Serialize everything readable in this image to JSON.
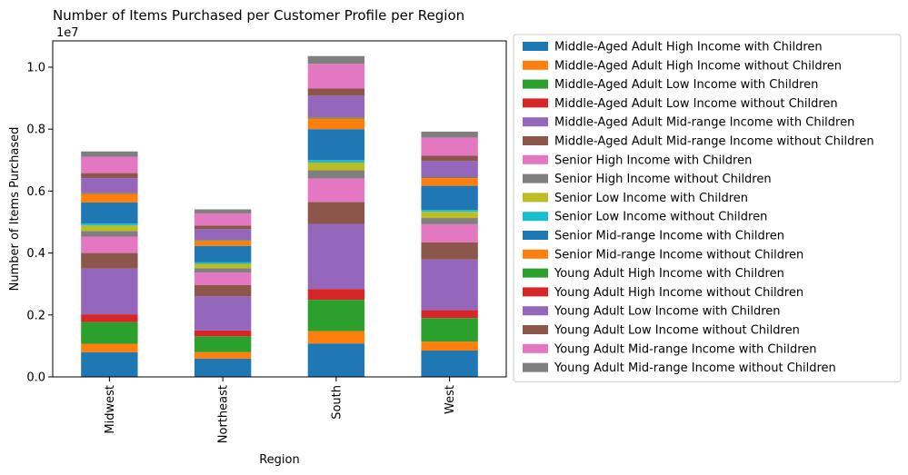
{
  "chart_data": {
    "type": "bar",
    "stacked": true,
    "title": "Number of Items Purchased per Customer Profile per Region",
    "xlabel": "Region",
    "ylabel": "Number of Items Purchased",
    "y_offset_label": "1e7",
    "ylim": [
      0,
      10850000
    ],
    "yticks": [
      0,
      2000000,
      4000000,
      6000000,
      8000000,
      10000000
    ],
    "ytick_labels": [
      "0.0",
      "0.2",
      "0.4",
      "0.6",
      "0.8",
      "1.0"
    ],
    "categories": [
      "Midwest",
      "Northeast",
      "South",
      "West"
    ],
    "legend_position": "outside-right",
    "series": [
      {
        "name": "Middle-Aged Adult High Income with Children",
        "color": "#1f77b4",
        "values": [
          800000,
          590000,
          1080000,
          850000
        ]
      },
      {
        "name": "Middle-Aged Adult High Income without Children",
        "color": "#ff7f0e",
        "values": [
          270000,
          210000,
          400000,
          290000
        ]
      },
      {
        "name": "Middle-Aged Adult Low Income with Children",
        "color": "#2ca02c",
        "values": [
          700000,
          510000,
          1010000,
          760000
        ]
      },
      {
        "name": "Middle-Aged Adult Low Income without Children",
        "color": "#d62728",
        "values": [
          250000,
          190000,
          350000,
          260000
        ]
      },
      {
        "name": "Middle-Aged Adult Mid-range Income with Children",
        "color": "#9467bd",
        "values": [
          1480000,
          1100000,
          2100000,
          1630000
        ]
      },
      {
        "name": "Middle-Aged Adult Mid-range Income without Children",
        "color": "#8c564b",
        "values": [
          500000,
          370000,
          710000,
          550000
        ]
      },
      {
        "name": "Senior High Income with Children",
        "color": "#e377c2",
        "values": [
          530000,
          400000,
          760000,
          590000
        ]
      },
      {
        "name": "Senior High Income without Children",
        "color": "#7f7f7f",
        "values": [
          180000,
          140000,
          260000,
          200000
        ]
      },
      {
        "name": "Senior Low Income with Children",
        "color": "#bcbd22",
        "values": [
          180000,
          140000,
          250000,
          200000
        ]
      },
      {
        "name": "Senior Low Income without Children",
        "color": "#17becf",
        "values": [
          60000,
          50000,
          80000,
          60000
        ]
      },
      {
        "name": "Senior Mid-range Income with Children",
        "color": "#1f77b4",
        "values": [
          680000,
          530000,
          1000000,
          780000
        ]
      },
      {
        "name": "Senior Mid-range Income without Children",
        "color": "#ff7f0e",
        "values": [
          280000,
          160000,
          340000,
          250000
        ]
      },
      {
        "name": "Young Adult High Income with Children",
        "color": "#2ca02c",
        "values": [
          20000,
          20000,
          30000,
          20000
        ]
      },
      {
        "name": "Young Adult High Income without Children",
        "color": "#d62728",
        "values": [
          10000,
          10000,
          10000,
          10000
        ]
      },
      {
        "name": "Young Adult Low Income with Children",
        "color": "#9467bd",
        "values": [
          480000,
          350000,
          700000,
          520000
        ]
      },
      {
        "name": "Young Adult Low Income without Children",
        "color": "#8c564b",
        "values": [
          160000,
          120000,
          230000,
          170000
        ]
      },
      {
        "name": "Young Adult Mid-range Income with Children",
        "color": "#e377c2",
        "values": [
          530000,
          390000,
          800000,
          590000
        ]
      },
      {
        "name": "Young Adult Mid-range Income without Children",
        "color": "#7f7f7f",
        "values": [
          170000,
          130000,
          250000,
          190000
        ]
      }
    ]
  }
}
